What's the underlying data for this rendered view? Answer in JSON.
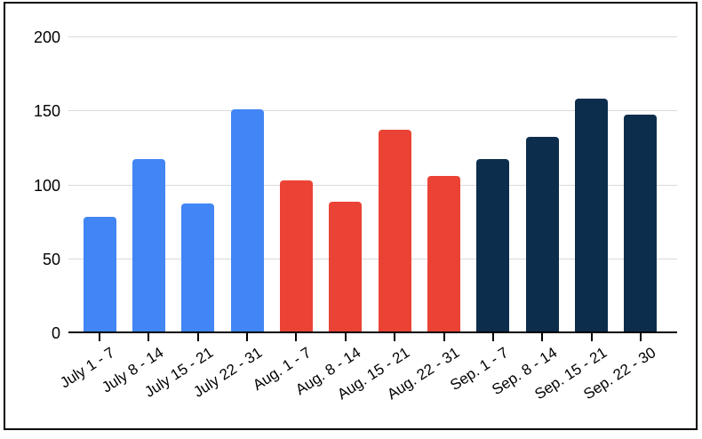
{
  "chart_data": {
    "type": "bar",
    "categories": [
      "July 1 - 7",
      "July 8 - 14",
      "July 15 - 21",
      "July 22 - 31",
      "Aug. 1 - 7",
      "Aug. 8 - 14",
      "Aug. 15 - 21",
      "Aug. 22 - 31",
      "Sep. 1 - 7",
      "Sep. 8 - 14",
      "Sep. 15 - 21",
      "Sep. 22 - 30"
    ],
    "values": [
      78,
      117,
      87,
      151,
      103,
      88,
      137,
      106,
      117,
      132,
      158,
      147
    ],
    "bar_colors": [
      "#4285f4",
      "#4285f4",
      "#4285f4",
      "#4285f4",
      "#ea4335",
      "#ea4335",
      "#ea4335",
      "#ea4335",
      "#0d2d4d",
      "#0d2d4d",
      "#0d2d4d",
      "#0d2d4d"
    ],
    "title": "",
    "xlabel": "",
    "ylabel": "",
    "ylim": [
      0,
      200
    ],
    "yticks": [
      0,
      50,
      100,
      150,
      200
    ],
    "ytick_labels": [
      "0",
      "50",
      "100",
      "150",
      "200"
    ],
    "grid": true,
    "legend": "none"
  },
  "colors": {
    "gridline": "#d9d9d9",
    "axis": "#000000",
    "background": "#ffffff",
    "frame_border": "#000000"
  }
}
